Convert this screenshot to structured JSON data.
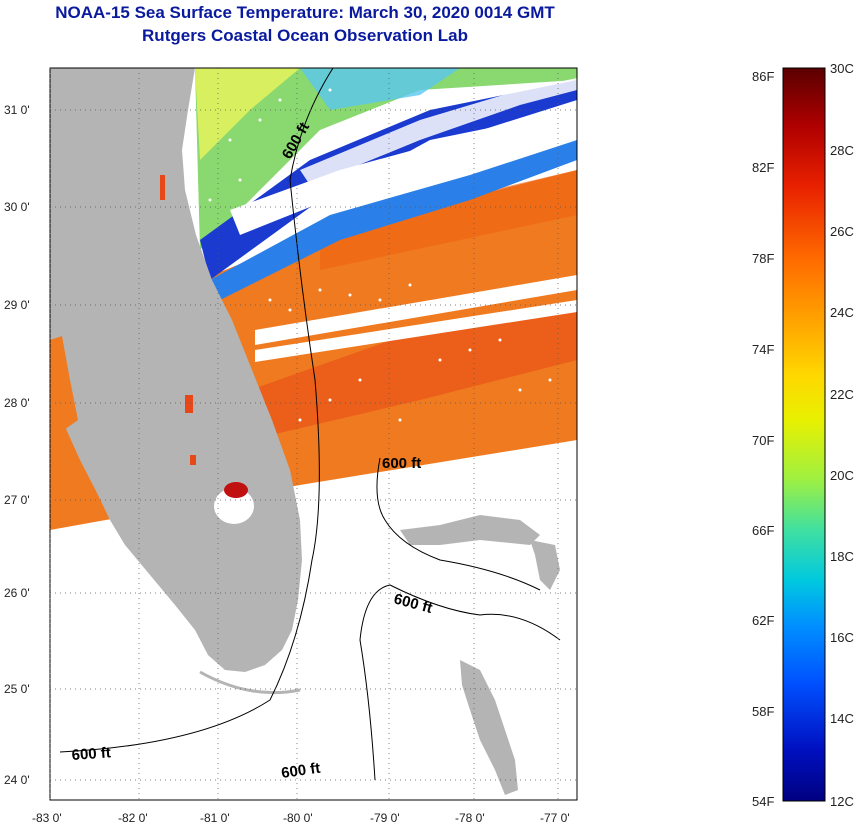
{
  "title": {
    "line1": "NOAA-15 Sea Surface Temperature:  March 30, 2020 0014 GMT",
    "line2": "Rutgers Coastal Ocean Observation Lab"
  },
  "map": {
    "lat_labels": [
      "31 0'",
      "30 0'",
      "29 0'",
      "28 0'",
      "27 0'",
      "26 0'",
      "25 0'",
      "24 0'"
    ],
    "lon_labels": [
      "-83 0'",
      "-82 0'",
      "-81 0'",
      "-80 0'",
      "-79 0'",
      "-78 0'",
      "-77 0'"
    ],
    "isobath_labels": [
      "600 ft",
      "600 ft",
      "600 ft",
      "600 ft",
      "600 ft"
    ],
    "colors": {
      "land": "#b4b4b4",
      "warm": "#f07a20",
      "hot": "#e84818",
      "cool": "#8ad870",
      "cold": "#1a3ad0",
      "nodata": "#ffffff"
    }
  },
  "colorbar": {
    "fahrenheit_labels": [
      "86F",
      "82F",
      "78F",
      "74F",
      "70F",
      "66F",
      "62F",
      "58F",
      "54F"
    ],
    "celsius_labels": [
      "30C",
      "28C",
      "26C",
      "24C",
      "22C",
      "20C",
      "18C",
      "16C",
      "14C",
      "12C"
    ],
    "stops": [
      "#5a0000",
      "#b00000",
      "#e82000",
      "#ff6a00",
      "#ffa000",
      "#ffd800",
      "#e8f000",
      "#a0f040",
      "#40e0a0",
      "#00c8e0",
      "#0090ff",
      "#0050ff",
      "#0010c0",
      "#000080"
    ]
  }
}
